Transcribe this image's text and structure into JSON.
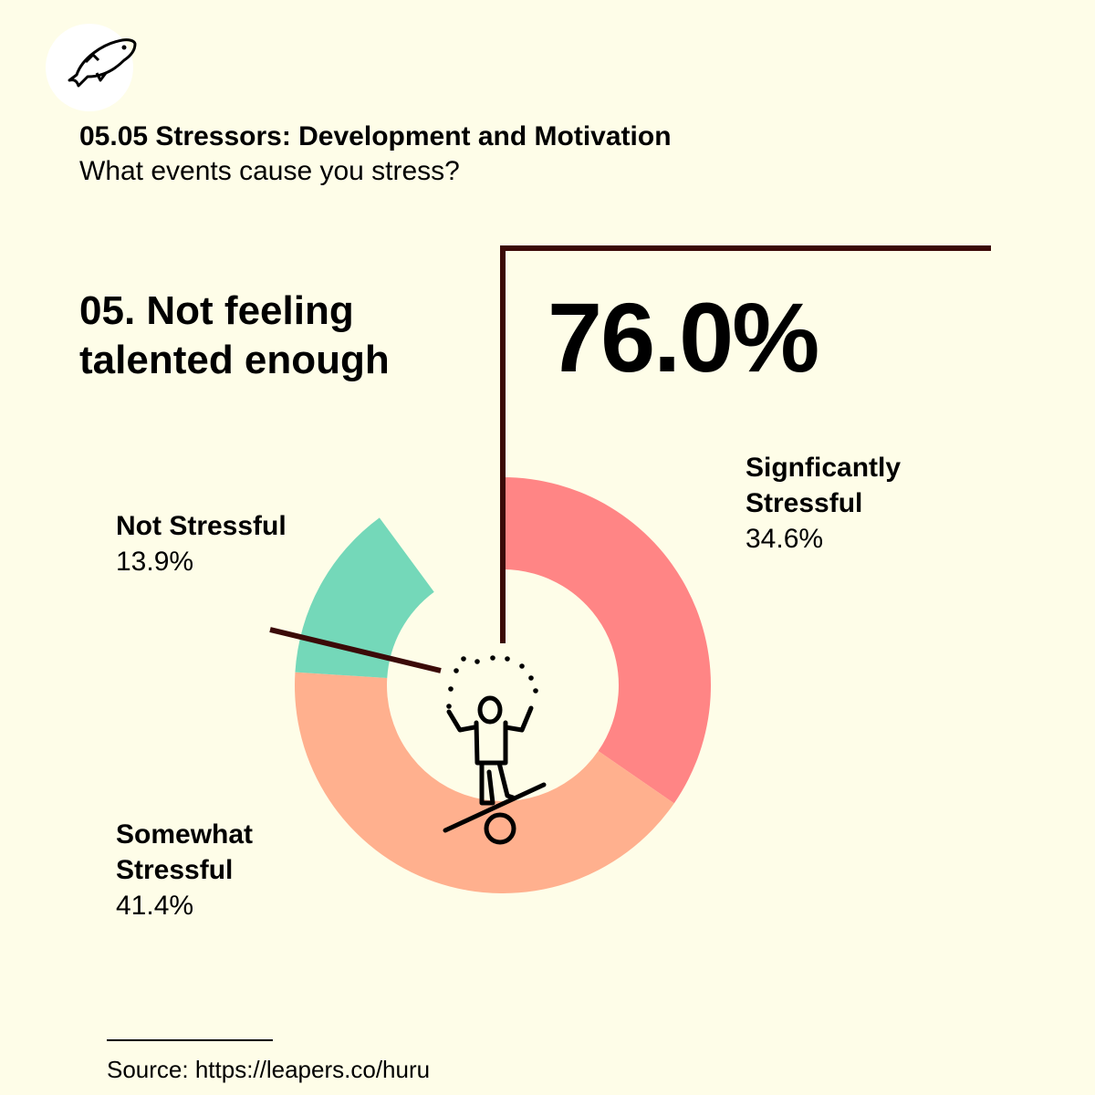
{
  "header": {
    "title": "05.05 Stressors: Development and Motivation",
    "subtitle": "What events cause you stress?"
  },
  "question": "05. Not feeling talented enough",
  "highlight_value": "76.0%",
  "source": "Source: https://leapers.co/huru",
  "icons": {
    "logo": "fish-icon",
    "figure": "juggler-balance-icon"
  },
  "colors": {
    "background": "#fefde8",
    "significantly": "#ff8585",
    "somewhat": "#ffb08e",
    "not": "#74d8b9",
    "leader_line": "#3b0a08",
    "text": "#000000"
  },
  "chart_data": {
    "type": "pie",
    "variant": "donut",
    "title": "05. Not feeling talented enough",
    "slices": [
      {
        "label": "Signficantly Stressful",
        "value": 34.6,
        "value_label": "34.6%",
        "color": "#ff8585"
      },
      {
        "label": "Somewhat Stressful",
        "value": 41.4,
        "value_label": "41.4%",
        "color": "#ffb08e"
      },
      {
        "label": "Not Stressful",
        "value": 13.9,
        "value_label": "13.9%",
        "color": "#74d8b9"
      }
    ],
    "remaining_gap_percent": 10.1
  }
}
